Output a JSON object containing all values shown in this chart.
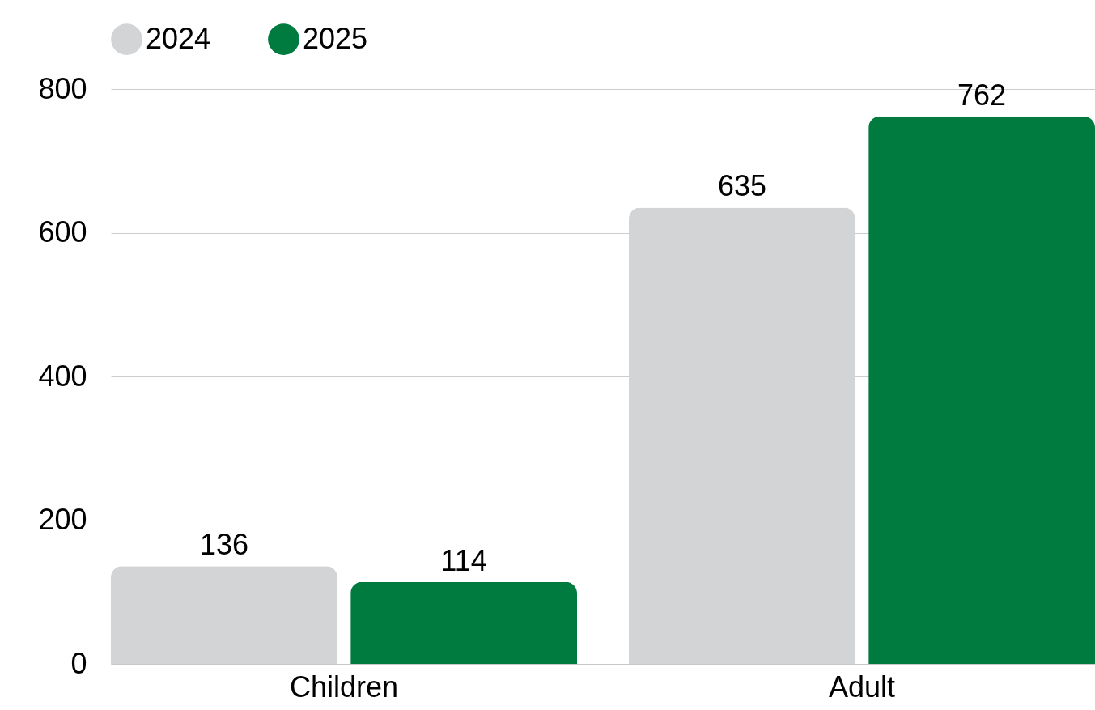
{
  "chart_data": {
    "type": "bar",
    "categories": [
      "Children",
      "Adult"
    ],
    "series": [
      {
        "name": "2024",
        "color": "#d3d4d6",
        "values": [
          136,
          635
        ]
      },
      {
        "name": "2025",
        "color": "#007b40",
        "values": [
          114,
          762
        ]
      }
    ],
    "ylim": [
      0,
      800
    ],
    "yticks": [
      0,
      200,
      400,
      600,
      800
    ],
    "grid": "y",
    "legend": "top",
    "data_labels": true
  }
}
